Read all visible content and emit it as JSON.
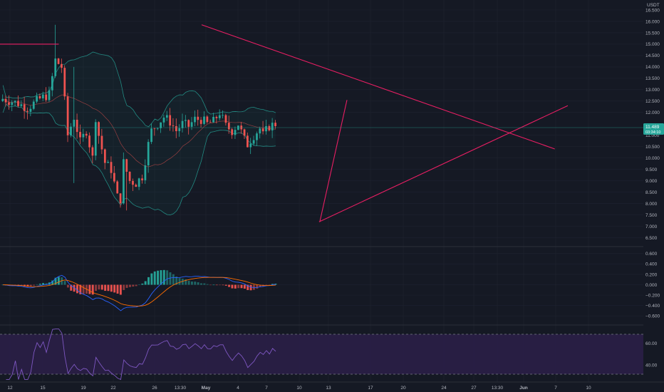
{
  "quote_currency": "USDT",
  "colors": {
    "background": "#151924",
    "grid": "#1f2330",
    "up": "#26a69a",
    "down": "#ef5350",
    "trendline": "#e91e63",
    "price_badge": "#26a69a",
    "macd": "#2962ff",
    "signal": "#ff6d00",
    "rsi_line": "#7e57c2",
    "rsi_band": "#2a1f47"
  },
  "last_price": {
    "value": "11.489",
    "countdown": "03:34:10"
  },
  "chart_data": [
    {
      "type": "candlestick",
      "pane": "price",
      "title": "",
      "y_axis_unit": "USDT",
      "y_ticks": [
        "16.500",
        "16.000",
        "15.500",
        "15.000",
        "14.500",
        "14.000",
        "13.500",
        "13.000",
        "12.500",
        "12.000",
        "11.000",
        "10.500",
        "10.000",
        "9.500",
        "9.000",
        "8.500",
        "8.000",
        "7.500",
        "7.000",
        "6.500"
      ],
      "ylim": [
        6.3,
        16.75
      ],
      "indicators": [
        "bollinger_bands",
        "moving_average"
      ],
      "trendlines": [
        {
          "name": "descending",
          "from": {
            "day": 15.5,
            "price": 15.85
          },
          "to": {
            "day": 42.5,
            "price": 10.4
          }
        },
        {
          "name": "ascending",
          "from": {
            "day": 24.5,
            "price": 7.2
          },
          "to": {
            "day": 43.5,
            "price": 12.3
          }
        },
        {
          "name": "horizontal",
          "from": {
            "day": 0,
            "price": 15.0
          },
          "to": {
            "day": 4.5,
            "price": 15.0
          }
        }
      ]
    },
    {
      "type": "histogram+line",
      "pane": "macd",
      "y_ticks": [
        "0.600",
        "0.400",
        "0.200",
        "0.000",
        "−0.200",
        "−0.400",
        "−0.600"
      ],
      "ylim": [
        -0.72,
        0.68
      ]
    },
    {
      "type": "line",
      "pane": "rsi",
      "y_ticks": [
        "60.00",
        "40.00"
      ],
      "band": [
        30,
        70
      ],
      "ylim": [
        26,
        74
      ]
    }
  ],
  "x_axis": {
    "labels": [
      "12",
      "15",
      "19",
      "22",
      "26",
      "13:30",
      "May",
      "4",
      "7",
      "10",
      "13",
      "17",
      "20",
      "24",
      "27",
      "13:30",
      "Jun",
      "7",
      "10"
    ]
  }
}
